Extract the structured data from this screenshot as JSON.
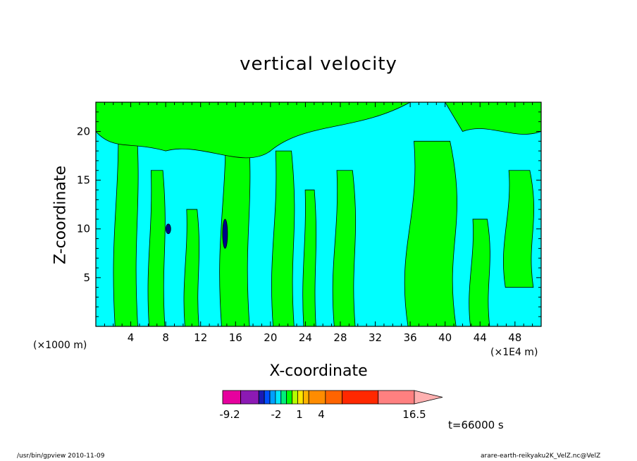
{
  "chart_data": {
    "type": "heatmap",
    "title": "vertical velocity",
    "xlabel": "X-coordinate",
    "ylabel": "Z-coordinate",
    "x_unit_label": "(×1E4 m)",
    "y_unit_label": "(×1000 m)",
    "xlim": [
      0,
      51
    ],
    "ylim": [
      0,
      23
    ],
    "x_ticks": [
      4,
      8,
      12,
      16,
      20,
      24,
      28,
      32,
      36,
      40,
      44,
      48
    ],
    "y_ticks": [
      5,
      10,
      15,
      20
    ],
    "time_label": "t=66000 s",
    "colorbar": {
      "levels": [
        -9.2,
        -8.2,
        -7.2,
        -6.2,
        -5.2,
        -4.2,
        -3.2,
        -2.2,
        -2,
        -1,
        0,
        1,
        2,
        3,
        4,
        5,
        6,
        8.3,
        10.6,
        12.9,
        16.5
      ],
      "colors": [
        "#e6009e",
        "#8c1ab4",
        "#1a1ab4",
        "#0050ff",
        "#00a0ff",
        "#00e6ff",
        "#00f07a",
        "#00ff00",
        "#b4ff00",
        "#ffe600",
        "#ffb400",
        "#ff8c00",
        "#ff6400",
        "#ff2800",
        "#ff8080"
      ],
      "tick_labels": [
        "-9.2",
        "-2",
        "1",
        "4",
        "16.5"
      ],
      "extend": "max"
    },
    "field_note": "Mostly cyan (-1 to 0) and green (0 to 1) contour bands, with vertical columns of stronger updrafts/downdrafts near x = 8–18",
    "contour_bands": [
      {
        "name": "cyan",
        "range": [
          -1,
          0
        ],
        "color": "#00ffff"
      },
      {
        "name": "green",
        "range": [
          0,
          1
        ],
        "color": "#00ff00"
      }
    ],
    "features": [
      {
        "type": "green_column",
        "x_center": 3.5,
        "z_from": 0,
        "z_to": 23
      },
      {
        "type": "green_column",
        "x_center": 7,
        "z_from": 0,
        "z_to": 16
      },
      {
        "type": "green_column",
        "x_center": 11,
        "z_from": 0,
        "z_to": 12
      },
      {
        "type": "green_column",
        "x_center": 16,
        "z_from": 0,
        "z_to": 23
      },
      {
        "type": "green_column",
        "x_center": 21.5,
        "z_from": 0,
        "z_to": 18
      },
      {
        "type": "green_column",
        "x_center": 24.5,
        "z_from": 0,
        "z_to": 14
      },
      {
        "type": "green_column",
        "x_center": 28.5,
        "z_from": 0,
        "z_to": 16
      },
      {
        "type": "green_column",
        "x_center": 38.5,
        "z_from": 0,
        "z_to": 19
      },
      {
        "type": "green_column",
        "x_center": 44,
        "z_from": 0,
        "z_to": 11
      },
      {
        "type": "green_column",
        "x_center": 48.5,
        "z_from": 4,
        "z_to": 16
      },
      {
        "type": "dark_updraft",
        "x_center": 14.8,
        "z_from": 8,
        "z_to": 11
      },
      {
        "type": "dark_updraft",
        "x_center": 8.3,
        "z_from": 9.5,
        "z_to": 10.5
      }
    ]
  },
  "footer": {
    "left": "/usr/bin/gpview   2010-11-09",
    "right": "arare-earth-reikyaku2K_VelZ.nc@VelZ"
  },
  "colors": {
    "frame": "#000000",
    "background": "#ffffff"
  }
}
